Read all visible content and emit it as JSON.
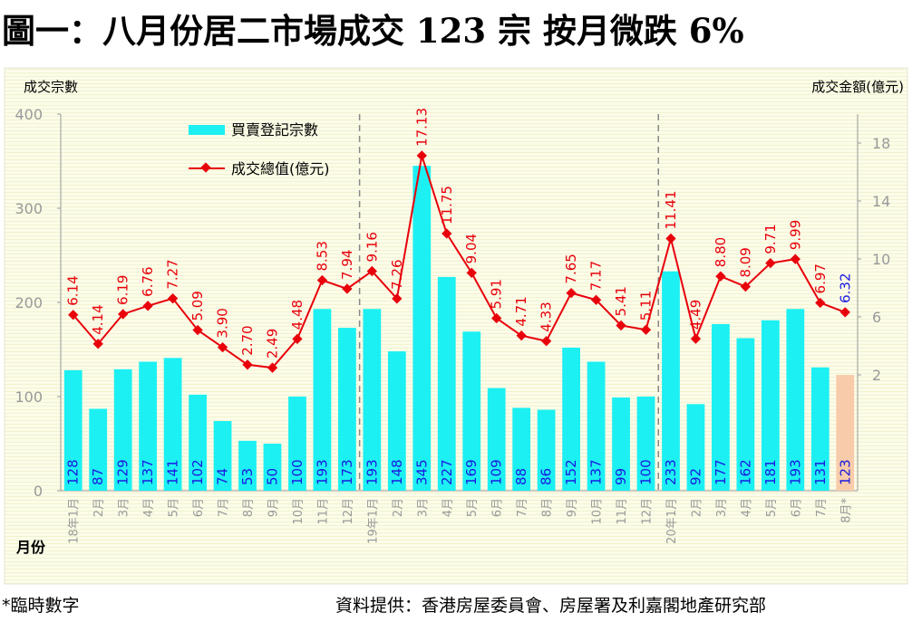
{
  "title": "圖一：八月份居二市場成交 123 宗  按月微跌 6%",
  "footer": {
    "note": "*臨時數字",
    "source": "資料提供：香港房屋委員會、房屋署及利嘉閣地產研究部"
  },
  "colors": {
    "bar": "#1CF0F2",
    "bar_provisional": "#F8CBAA",
    "line": "#E8000B",
    "bar_label": "#1A1AE0",
    "background": "#FCFCE8"
  },
  "chart_data": {
    "type": "bar+line",
    "ylabel": "成交宗數",
    "y2label": "成交金額(億元)",
    "xlabel": "月份",
    "ylim": [
      0,
      400
    ],
    "yticks": [
      0,
      100,
      200,
      300,
      400
    ],
    "y2lim": [
      -6,
      20
    ],
    "y2ticks": [
      2,
      6,
      10,
      14,
      18
    ],
    "legend_position": "top-left",
    "categories": [
      "18年1月",
      "2月",
      "3月",
      "4月",
      "5月",
      "6月",
      "7月",
      "8月",
      "9月",
      "10月",
      "11月",
      "12月",
      "19年1月",
      "2月",
      "3月",
      "4月",
      "5月",
      "6月",
      "7月",
      "8月",
      "9月",
      "10月",
      "11月",
      "12月",
      "20年1月",
      "2月",
      "3月",
      "4月",
      "5月",
      "6月",
      "7月",
      "8月*"
    ],
    "series": [
      {
        "name": "買賣登記宗數",
        "type": "bar",
        "axis": "left",
        "values": [
          128,
          87,
          129,
          137,
          141,
          102,
          74,
          53,
          50,
          100,
          193,
          173,
          193,
          148,
          345,
          227,
          169,
          109,
          88,
          86,
          152,
          137,
          99,
          100,
          233,
          92,
          177,
          162,
          181,
          193,
          131,
          123
        ],
        "labels": [
          "128",
          "87",
          "129",
          "137",
          "141",
          "102",
          "74",
          "53",
          "50",
          "100",
          "193",
          "173",
          "193",
          "148",
          "345",
          "227",
          "169",
          "109",
          "88",
          "86",
          "152",
          "137",
          "99",
          "100",
          "233",
          "92",
          "177",
          "162",
          "181",
          "193",
          "131",
          "123"
        ]
      },
      {
        "name": "成交總值(億元)",
        "type": "line",
        "axis": "right",
        "values": [
          6.14,
          4.14,
          6.19,
          6.76,
          7.27,
          5.09,
          3.9,
          2.7,
          2.49,
          4.48,
          8.53,
          7.94,
          9.16,
          7.26,
          17.13,
          11.75,
          9.04,
          5.91,
          4.71,
          4.33,
          7.65,
          7.17,
          5.41,
          5.11,
          11.41,
          4.49,
          8.8,
          8.09,
          9.71,
          9.99,
          6.97,
          6.32
        ],
        "labels": [
          "6.14",
          "4.14",
          "6.19",
          "6.76",
          "7.27",
          "5.09",
          "3.90",
          "2.70",
          "2.49",
          "4.48",
          "8.53",
          "7.94",
          "9.16",
          "7.26",
          "17.13",
          "11.75",
          "9.04",
          "5.91",
          "4.71",
          "4.33",
          "7.65",
          "7.17",
          "5.41",
          "5.11",
          "11.41",
          "4.49",
          "8.80",
          "8.09",
          "9.71",
          "9.99",
          "6.97",
          "6.32"
        ]
      }
    ],
    "provisional_index": 31,
    "year_dividers_before": [
      12,
      24
    ]
  }
}
